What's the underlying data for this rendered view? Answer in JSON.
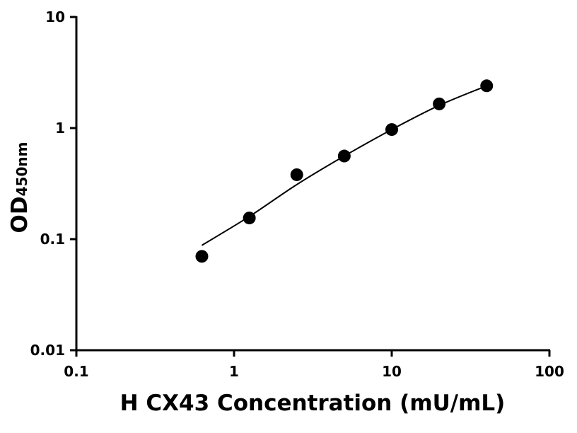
{
  "chart_data": {
    "type": "scatter",
    "x_label": "H CX43 Concentration (mU/mL)",
    "y_label": "OD",
    "y_label_sub": "450nm",
    "x": [
      0.625,
      1.25,
      2.5,
      5,
      10,
      20,
      40
    ],
    "values": [
      0.07,
      0.155,
      0.38,
      0.56,
      0.97,
      1.65,
      2.4
    ],
    "fit_values": [
      0.088,
      0.16,
      0.31,
      0.56,
      0.97,
      1.6,
      2.4
    ],
    "color": "#000000",
    "xscale": "log",
    "yscale": "log",
    "xlim": [
      0.1,
      100
    ],
    "ylim": [
      0.01,
      10
    ],
    "xticks": [
      0.1,
      1,
      10,
      100
    ],
    "yticks": [
      0.01,
      0.1,
      1,
      10
    ]
  }
}
